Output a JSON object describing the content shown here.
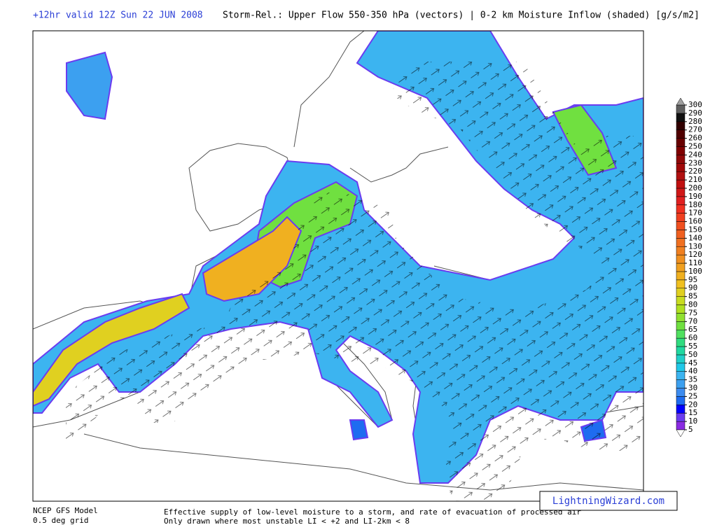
{
  "header": {
    "valid": "+12hr valid 12Z Sun 22 JUN 2008",
    "title": "Storm-Rel.: Upper Flow 550-350 hPa (vectors) | 0-2 km Moisture Inflow (shaded) [g/s/m2]"
  },
  "colorbar": {
    "levels": [
      5,
      10,
      15,
      20,
      25,
      30,
      35,
      40,
      45,
      50,
      55,
      60,
      65,
      70,
      75,
      80,
      85,
      90,
      95,
      100,
      110,
      120,
      130,
      140,
      150,
      160,
      170,
      180,
      190,
      200,
      210,
      220,
      230,
      240,
      250,
      260,
      270,
      280,
      290,
      300
    ],
    "colors": [
      "#8a2be2",
      "#6a3cf0",
      "#0000ff",
      "#1e6cf0",
      "#3c8cf0",
      "#3ca0f0",
      "#3cb4f0",
      "#20c8e8",
      "#20d0c8",
      "#20d8a0",
      "#30dc80",
      "#50e060",
      "#70e040",
      "#90e030",
      "#b0e020",
      "#c8dc20",
      "#e0d020",
      "#f0c020",
      "#f0b020",
      "#f0a020",
      "#f09020",
      "#f08020",
      "#f07020",
      "#f06020",
      "#f05020",
      "#f04020",
      "#f03020",
      "#e02020",
      "#d01818",
      "#c01010",
      "#b01010",
      "#a00808",
      "#900808",
      "#800000",
      "#680000",
      "#500000",
      "#300000",
      "#101010",
      "#606060"
    ],
    "under_color": "#ffffff",
    "over_color": "#a0a0a0"
  },
  "footer": {
    "model": "NCEP GFS Model",
    "grid": "0.5 deg grid",
    "description_1": "Effective supply of low-level moisture to a storm, and rate of evacuation of processed air",
    "description_2": "Only drawn where most unstable LI < +2 and LI-2km < 8",
    "watermark": "LightningWizard.com"
  }
}
